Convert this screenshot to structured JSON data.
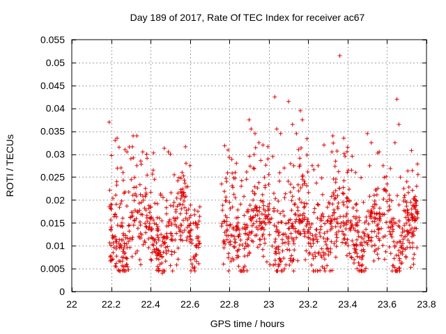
{
  "chart_data": {
    "type": "scatter",
    "title": "Day 189 of 2017, Rate Of TEC Index for receiver ac67",
    "xlabel": "GPS time / hours",
    "ylabel": "ROTI / TECUs",
    "xlim": [
      22,
      23.8
    ],
    "ylim": [
      0,
      0.055
    ],
    "xticks": [
      "22",
      "22.2",
      "22.4",
      "22.6",
      "22.8",
      "23",
      "23.2",
      "23.4",
      "23.6",
      "23.8"
    ],
    "yticks": [
      "0",
      "0.005",
      "0.01",
      "0.015",
      "0.02",
      "0.025",
      "0.03",
      "0.035",
      "0.04",
      "0.045",
      "0.05",
      "0.055"
    ],
    "grid": true,
    "marker": "plus",
    "color": "#e00000",
    "segments": [
      [
        22.19,
        22.65
      ],
      [
        22.76,
        23.76
      ]
    ],
    "series": [
      {
        "name": "ROTI",
        "points": [
          [
            22.19,
            0.037
          ],
          [
            22.2,
            0.018
          ],
          [
            22.21,
            0.0085
          ],
          [
            22.22,
            0.033
          ],
          [
            22.23,
            0.0335
          ],
          [
            22.24,
            0.0315
          ],
          [
            22.25,
            0.027
          ],
          [
            22.26,
            0.026
          ],
          [
            22.27,
            0.031
          ],
          [
            22.28,
            0.0305
          ],
          [
            22.3,
            0.029
          ],
          [
            22.31,
            0.021
          ],
          [
            22.33,
            0.0275
          ],
          [
            22.35,
            0.0285
          ],
          [
            22.36,
            0.0305
          ],
          [
            22.38,
            0.03
          ],
          [
            22.4,
            0.007
          ],
          [
            22.42,
            0.0245
          ],
          [
            22.44,
            0.005
          ],
          [
            22.46,
            0.004
          ],
          [
            22.47,
            0.0045
          ],
          [
            22.49,
            0.0305
          ],
          [
            22.5,
            0.03
          ],
          [
            22.52,
            0.0255
          ],
          [
            22.54,
            0.0095
          ],
          [
            22.56,
            0.026
          ],
          [
            22.58,
            0.028
          ],
          [
            22.6,
            0.0275
          ],
          [
            22.61,
            0.006
          ],
          [
            22.62,
            0.005
          ],
          [
            22.63,
            0.01
          ],
          [
            22.64,
            0.0175
          ],
          [
            22.65,
            0.0185
          ],
          [
            22.76,
            0.0235
          ],
          [
            22.77,
            0.006
          ],
          [
            22.8,
            0.0195
          ],
          [
            22.83,
            0.0205
          ],
          [
            22.86,
            0.023
          ],
          [
            22.9,
            0.0375
          ],
          [
            22.91,
            0.0355
          ],
          [
            22.93,
            0.0345
          ],
          [
            22.95,
            0.0325
          ],
          [
            22.97,
            0.032
          ],
          [
            22.99,
            0.0065
          ],
          [
            23.02,
            0.0295
          ],
          [
            23.03,
            0.0425
          ],
          [
            23.04,
            0.0355
          ],
          [
            23.06,
            0.0345
          ],
          [
            23.08,
            0.0205
          ],
          [
            23.1,
            0.0415
          ],
          [
            23.12,
            0.0365
          ],
          [
            23.14,
            0.0345
          ],
          [
            23.16,
            0.0395
          ],
          [
            23.17,
            0.0375
          ],
          [
            23.2,
            0.013
          ],
          [
            23.22,
            0.0275
          ],
          [
            23.25,
            0.0275
          ],
          [
            23.28,
            0.032
          ],
          [
            23.3,
            0.0155
          ],
          [
            23.32,
            0.0305
          ],
          [
            23.34,
            0.0075
          ],
          [
            23.36,
            0.0515
          ],
          [
            23.38,
            0.0335
          ],
          [
            23.4,
            0.0315
          ],
          [
            23.42,
            0.0265
          ],
          [
            23.44,
            0.026
          ],
          [
            23.46,
            0.0155
          ],
          [
            23.48,
            0.0195
          ],
          [
            23.5,
            0.0345
          ],
          [
            23.52,
            0.0325
          ],
          [
            23.54,
            0.016
          ],
          [
            23.56,
            0.0305
          ],
          [
            23.58,
            0.0275
          ],
          [
            23.6,
            0.0235
          ],
          [
            23.62,
            0.0125
          ],
          [
            23.64,
            0.0325
          ],
          [
            23.65,
            0.042
          ],
          [
            23.66,
            0.0365
          ],
          [
            23.68,
            0.0105
          ],
          [
            23.7,
            0.024
          ],
          [
            23.72,
            0.0195
          ],
          [
            23.74,
            0.0185
          ],
          [
            23.75,
            0.023
          ]
        ]
      }
    ]
  }
}
